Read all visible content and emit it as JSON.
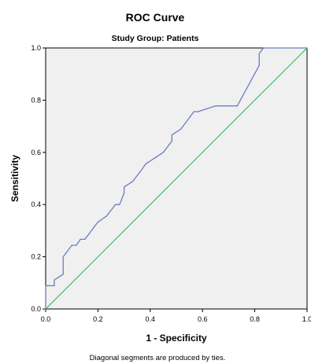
{
  "chart_data": {
    "type": "line",
    "title": "ROC Curve",
    "subtitle": "Study Group: Patients",
    "xlabel": "1 - Specificity",
    "ylabel": "Sensitivity",
    "footnote": "Diagonal segments are produced by ties.",
    "xlim": [
      0,
      1
    ],
    "ylim": [
      0,
      1
    ],
    "x_ticks": [
      "0.0",
      "0.2",
      "0.4",
      "0.6",
      "0.8",
      "1.0"
    ],
    "y_ticks": [
      "0.0",
      "0.2",
      "0.4",
      "0.6",
      "0.8",
      "1.0"
    ],
    "grid": false,
    "legend": "none",
    "colors": {
      "plot_background": "#f0f0f0",
      "roc_line": "#6c7ebf",
      "reference_line": "#4fbf6a"
    },
    "series": [
      {
        "x": [
          0.0,
          0.0,
          0.033,
          0.033,
          0.067,
          0.067,
          0.1,
          0.117,
          0.133,
          0.15,
          0.167,
          0.183,
          0.2,
          0.233,
          0.25,
          0.267,
          0.283,
          0.3,
          0.3,
          0.333,
          0.35,
          0.367,
          0.383,
          0.417,
          0.45,
          0.467,
          0.483,
          0.483,
          0.517,
          0.55,
          0.567,
          0.583,
          0.65,
          0.733,
          0.817,
          0.817,
          0.833,
          1.0
        ],
        "y": [
          0.0,
          0.089,
          0.089,
          0.111,
          0.133,
          0.2,
          0.244,
          0.244,
          0.267,
          0.267,
          0.289,
          0.311,
          0.333,
          0.356,
          0.378,
          0.4,
          0.4,
          0.444,
          0.467,
          0.489,
          0.511,
          0.533,
          0.556,
          0.578,
          0.6,
          0.622,
          0.644,
          0.667,
          0.689,
          0.733,
          0.756,
          0.756,
          0.778,
          0.778,
          0.933,
          0.978,
          1.0,
          1.0
        ]
      },
      {
        "x": [
          0,
          1
        ],
        "y": [
          0,
          1
        ]
      }
    ]
  }
}
